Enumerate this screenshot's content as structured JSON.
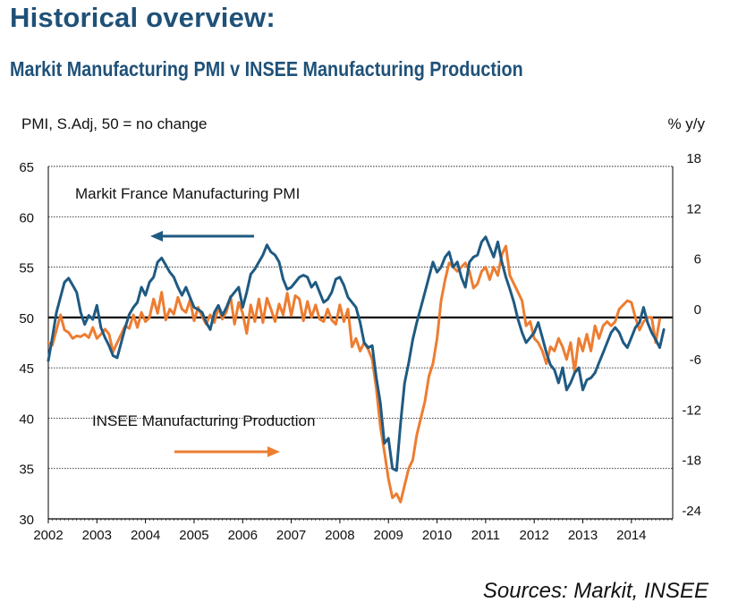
{
  "header": {
    "title": "Historical overview:",
    "subtitle": "Markit Manufacturing PMI v INSEE Manufacturing Production"
  },
  "footer": {
    "source": "Sources: Markit, INSEE"
  },
  "colors": {
    "pmi": "#1f5a82",
    "insee": "#ed7d31",
    "axis": "#000000",
    "grid": "#222222"
  },
  "chart_data": {
    "type": "line",
    "title": "Markit Manufacturing PMI v INSEE Manufacturing Production",
    "ylabel_left": "PMI, S.Adj, 50 = no change",
    "ylabel_right": "% y/y",
    "xlim": [
      2002,
      2014.85
    ],
    "ylim_left": [
      30,
      65
    ],
    "ylim_right": [
      -24,
      18
    ],
    "grid": "horizontal dotted",
    "x_ticks": [
      "2002",
      "2003",
      "2004",
      "2005",
      "2006",
      "2007",
      "2008",
      "2009",
      "2010",
      "2011",
      "2012",
      "2013",
      "2014"
    ],
    "y_ticks_left": [
      "30",
      "35",
      "40",
      "45",
      "50",
      "55",
      "60",
      "65"
    ],
    "y_ticks_right": [
      "-24",
      "-18",
      "-12",
      "-6",
      "0",
      "6",
      "12",
      "18"
    ],
    "annotations": [
      {
        "text": "Markit France Manufacturing  PMI",
        "arrow": "left"
      },
      {
        "text": "INSEE  Manufacturing  Production",
        "arrow": "right"
      }
    ],
    "series": [
      {
        "name": "Markit France Manufacturing  PMI",
        "axis": "left",
        "x": [
          2002.0,
          2002.083,
          2002.167,
          2002.25,
          2002.333,
          2002.417,
          2002.5,
          2002.583,
          2002.667,
          2002.75,
          2002.833,
          2002.917,
          2003.0,
          2003.083,
          2003.167,
          2003.25,
          2003.333,
          2003.417,
          2003.5,
          2003.583,
          2003.667,
          2003.75,
          2003.833,
          2003.917,
          2004.0,
          2004.083,
          2004.167,
          2004.25,
          2004.333,
          2004.417,
          2004.5,
          2004.583,
          2004.667,
          2004.75,
          2004.833,
          2004.917,
          2005.0,
          2005.083,
          2005.167,
          2005.25,
          2005.333,
          2005.417,
          2005.5,
          2005.583,
          2005.667,
          2005.75,
          2005.833,
          2005.917,
          2006.0,
          2006.083,
          2006.167,
          2006.25,
          2006.333,
          2006.417,
          2006.5,
          2006.583,
          2006.667,
          2006.75,
          2006.833,
          2006.917,
          2007.0,
          2007.083,
          2007.167,
          2007.25,
          2007.333,
          2007.417,
          2007.5,
          2007.583,
          2007.667,
          2007.75,
          2007.833,
          2007.917,
          2008.0,
          2008.083,
          2008.167,
          2008.25,
          2008.333,
          2008.417,
          2008.5,
          2008.583,
          2008.667,
          2008.75,
          2008.833,
          2008.917,
          2009.0,
          2009.083,
          2009.167,
          2009.25,
          2009.333,
          2009.417,
          2009.5,
          2009.583,
          2009.667,
          2009.75,
          2009.833,
          2009.917,
          2010.0,
          2010.083,
          2010.167,
          2010.25,
          2010.333,
          2010.417,
          2010.5,
          2010.583,
          2010.667,
          2010.75,
          2010.833,
          2010.917,
          2011.0,
          2011.083,
          2011.167,
          2011.25,
          2011.333,
          2011.417,
          2011.5,
          2011.583,
          2011.667,
          2011.75,
          2011.833,
          2011.917,
          2012.0,
          2012.083,
          2012.167,
          2012.25,
          2012.333,
          2012.417,
          2012.5,
          2012.583,
          2012.667,
          2012.75,
          2012.833,
          2012.917,
          2013.0,
          2013.083,
          2013.167,
          2013.25,
          2013.333,
          2013.417,
          2013.5,
          2013.583,
          2013.667,
          2013.75,
          2013.833,
          2013.917,
          2014.0,
          2014.083,
          2014.167,
          2014.25,
          2014.333,
          2014.417,
          2014.5,
          2014.583,
          2014.667
        ],
        "values": [
          45.7,
          48.0,
          50.5,
          52.0,
          53.5,
          53.9,
          53.2,
          52.5,
          50.5,
          49.3,
          50.2,
          49.8,
          51.2,
          49.0,
          48.0,
          47.2,
          46.2,
          46.0,
          47.5,
          49.0,
          50.3,
          51.0,
          51.5,
          53.0,
          52.2,
          53.5,
          54.0,
          55.5,
          55.9,
          55.2,
          54.5,
          54.0,
          53.0,
          52.2,
          53.0,
          52.0,
          51.0,
          50.8,
          50.5,
          49.5,
          48.8,
          50.5,
          51.2,
          50.2,
          51.0,
          52.0,
          52.5,
          53.0,
          51.0,
          52.5,
          54.3,
          54.8,
          55.5,
          56.2,
          57.2,
          56.5,
          56.2,
          55.5,
          53.8,
          52.8,
          53.0,
          53.5,
          54.0,
          54.2,
          54.0,
          53.0,
          53.5,
          52.5,
          51.5,
          51.8,
          52.5,
          53.8,
          54.0,
          53.2,
          52.0,
          51.5,
          51.0,
          49.5,
          47.5,
          47.0,
          47.2,
          44.0,
          41.5,
          37.5,
          38.0,
          35.0,
          34.8,
          39.5,
          43.5,
          45.5,
          47.8,
          49.5,
          51.0,
          52.5,
          54.0,
          55.5,
          54.5,
          55.0,
          56.0,
          56.5,
          55.0,
          55.5,
          54.0,
          53.0,
          55.5,
          56.0,
          56.2,
          57.5,
          58.0,
          57.0,
          56.0,
          57.5,
          55.5,
          54.0,
          52.8,
          51.5,
          49.8,
          48.5,
          47.5,
          48.0,
          48.5,
          49.5,
          48.0,
          46.5,
          45.3,
          44.8,
          43.5,
          45.0,
          42.8,
          43.5,
          44.5,
          45.0,
          42.8,
          43.8,
          44.0,
          44.5,
          45.5,
          46.5,
          47.5,
          48.5,
          49.0,
          48.5,
          47.5,
          47.0,
          48.0,
          49.0,
          49.5,
          51.0,
          49.5,
          48.5,
          47.8,
          47.0,
          48.8
        ]
      },
      {
        "name": "INSEE  Manufacturing  Production",
        "axis": "right",
        "x": [
          2002.0,
          2002.083,
          2002.167,
          2002.25,
          2002.333,
          2002.417,
          2002.5,
          2002.583,
          2002.667,
          2002.75,
          2002.833,
          2002.917,
          2003.0,
          2003.083,
          2003.167,
          2003.25,
          2003.333,
          2003.417,
          2003.5,
          2003.583,
          2003.667,
          2003.75,
          2003.833,
          2003.917,
          2004.0,
          2004.083,
          2004.167,
          2004.25,
          2004.333,
          2004.417,
          2004.5,
          2004.583,
          2004.667,
          2004.75,
          2004.833,
          2004.917,
          2005.0,
          2005.083,
          2005.167,
          2005.25,
          2005.333,
          2005.417,
          2005.5,
          2005.583,
          2005.667,
          2005.75,
          2005.833,
          2005.917,
          2006.0,
          2006.083,
          2006.167,
          2006.25,
          2006.333,
          2006.417,
          2006.5,
          2006.583,
          2006.667,
          2006.75,
          2006.833,
          2006.917,
          2007.0,
          2007.083,
          2007.167,
          2007.25,
          2007.333,
          2007.417,
          2007.5,
          2007.583,
          2007.667,
          2007.75,
          2007.833,
          2007.917,
          2008.0,
          2008.083,
          2008.167,
          2008.25,
          2008.333,
          2008.417,
          2008.5,
          2008.583,
          2008.667,
          2008.75,
          2008.833,
          2008.917,
          2009.0,
          2009.083,
          2009.167,
          2009.25,
          2009.333,
          2009.417,
          2009.5,
          2009.583,
          2009.667,
          2009.75,
          2009.833,
          2009.917,
          2010.0,
          2010.083,
          2010.167,
          2010.25,
          2010.333,
          2010.417,
          2010.5,
          2010.583,
          2010.667,
          2010.75,
          2010.833,
          2010.917,
          2011.0,
          2011.083,
          2011.167,
          2011.25,
          2011.333,
          2011.417,
          2011.5,
          2011.583,
          2011.667,
          2011.75,
          2011.833,
          2011.917,
          2012.0,
          2012.083,
          2012.167,
          2012.25,
          2012.333,
          2012.417,
          2012.5,
          2012.583,
          2012.667,
          2012.75,
          2012.833,
          2012.917,
          2013.0,
          2013.083,
          2013.167,
          2013.25,
          2013.333,
          2013.417,
          2013.5,
          2013.583,
          2013.667,
          2013.75,
          2013.833,
          2013.917,
          2014.0,
          2014.083,
          2014.167,
          2014.25,
          2014.333,
          2014.417,
          2014.5,
          2014.583
        ],
        "values": [
          -3.0,
          -3.3,
          -1.5,
          0.3,
          -1.5,
          -1.8,
          -2.5,
          -2.2,
          -2.3,
          -2.0,
          -2.4,
          -1.2,
          -2.5,
          -2.0,
          -1.4,
          -2.0,
          -4.1,
          -3.0,
          -2.0,
          -1.0,
          -1.3,
          0.3,
          -1.2,
          0.6,
          -0.5,
          0.0,
          2.2,
          0.5,
          3.0,
          -0.3,
          1.0,
          0.4,
          2.4,
          1.0,
          0.6,
          2.1,
          -0.4,
          1.2,
          0.1,
          -0.8,
          0.3,
          -0.6,
          1.2,
          -0.2,
          0.7,
          2.5,
          -0.8,
          1.8,
          0.5,
          -1.9,
          1.5,
          -0.5,
          2.2,
          -0.6,
          2.3,
          1.0,
          -0.5,
          1.6,
          0.3,
          2.9,
          0.2,
          2.6,
          2.2,
          -0.4,
          1.9,
          0.0,
          1.5,
          -0.2,
          -0.5,
          1.0,
          -0.3,
          -0.8,
          1.5,
          -0.5,
          1.0,
          -3.5,
          -2.5,
          -4.0,
          -3.0,
          -3.8,
          -5.0,
          -8.5,
          -13.0,
          -16.0,
          -19.2,
          -21.5,
          -21.0,
          -22.0,
          -20.0,
          -18.0,
          -17.0,
          -14.0,
          -12.0,
          -10.0,
          -7.0,
          -5.5,
          -2.5,
          2.0,
          4.5,
          6.5,
          6.0,
          5.5,
          6.0,
          6.5,
          5.5,
          3.5,
          4.0,
          5.5,
          6.0,
          4.5,
          6.0,
          5.0,
          7.5,
          8.5,
          5.0,
          4.0,
          3.0,
          2.0,
          -1.0,
          -0.5,
          -2.5,
          -3.0,
          -4.0,
          -5.5,
          -3.5,
          -4.0,
          -2.5,
          -3.5,
          -5.0,
          -3.0,
          -6.5,
          -2.5,
          -4.0,
          -2.0,
          -4.0,
          -1.0,
          -2.5,
          -1.0,
          -0.5,
          -1.0,
          -0.5,
          1.0,
          1.5,
          2.0,
          1.8,
          0.0,
          -1.5,
          -0.5,
          0.0,
          0.0,
          -3.0,
          -0.2
        ]
      }
    ]
  }
}
